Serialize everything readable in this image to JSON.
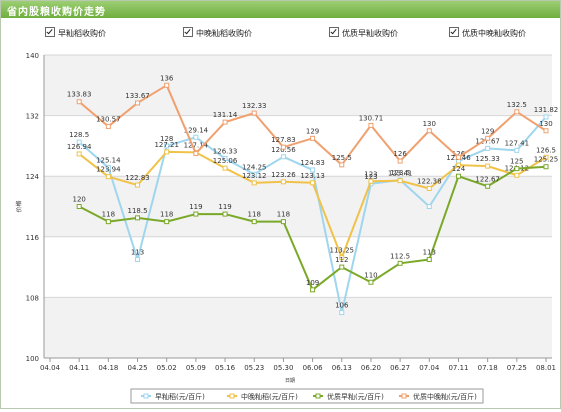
{
  "header": {
    "title": "省内股粮收购价走势"
  },
  "filters": [
    {
      "label": "早籼稻收购价",
      "checked": true
    },
    {
      "label": "中晚籼稻收购价",
      "checked": true
    },
    {
      "label": "优质早籼收购价",
      "checked": true
    },
    {
      "label": "优质中晚籼收购价",
      "checked": true
    }
  ],
  "chart_data": {
    "type": "line",
    "ylabel": "价格",
    "xlabel": "日期",
    "ylim": [
      100,
      140
    ],
    "yticks": [
      100,
      108,
      116,
      124,
      132,
      140
    ],
    "categories": [
      "04.04",
      "04.11",
      "04.18",
      "04.25",
      "05.02",
      "05.09",
      "05.16",
      "05.23",
      "05.30",
      "06.06",
      "06.13",
      "06.20",
      "06.27",
      "07.04",
      "07.11",
      "07.18",
      "07.25",
      "08.01"
    ],
    "series": [
      {
        "name": "早籼稻(元/百斤)",
        "color": "#9fd6ee",
        "values": [
          null,
          128.5,
          125.14,
          113,
          128,
          129.14,
          126.33,
          124.25,
          126.56,
          124.83,
          106,
          123,
          123.5,
          120,
          126,
          127.67,
          127.41,
          131.82
        ],
        "labels": [
          "",
          "128.5",
          "125.14",
          "113",
          "128",
          "129.14",
          "126.33",
          "124.25",
          "126.56",
          "124.83",
          "106",
          "123",
          "123.5",
          "",
          "126",
          "127.67",
          "127.41",
          "131.82"
        ]
      },
      {
        "name": "中晚籼稻(元/百斤)",
        "color": "#f0c24a",
        "values": [
          null,
          126.94,
          123.94,
          122.83,
          127.21,
          127.14,
          125.06,
          123.12,
          123.26,
          123.13,
          113.25,
          123.33,
          123.41,
          122.38,
          125.46,
          125.33,
          124.12,
          126.5
        ],
        "labels": [
          "",
          "126.94",
          "123.94",
          "122.83",
          "127.21",
          "127.14",
          "125.06",
          "123.12",
          "123.26",
          "123.13",
          "113.25",
          "123",
          "123.41",
          "122.38",
          "125.46",
          "125.33",
          "124.12",
          "126.5"
        ]
      },
      {
        "name": "优质早籼(元/百斤)",
        "color": "#7aa829",
        "values": [
          null,
          120,
          118,
          118.5,
          118,
          119,
          119,
          118,
          118,
          109,
          112,
          110,
          112.5,
          113,
          124,
          122.67,
          125,
          125.25
        ],
        "labels": [
          "",
          "120",
          "118",
          "118.5",
          "118",
          "119",
          "119",
          "118",
          "118",
          "109",
          "112",
          "110",
          "112.5",
          "113",
          "124",
          "122.67",
          "125",
          "125.25"
        ]
      },
      {
        "name": "优质中晚籼(元/百斤)",
        "color": "#f0a06e",
        "values": [
          null,
          133.83,
          130.57,
          133.67,
          136,
          127,
          131.14,
          132.33,
          127.83,
          129,
          125.5,
          130.71,
          126,
          130,
          126.5,
          129,
          132.5,
          130
        ],
        "labels": [
          "",
          "133.83",
          "130.57",
          "133.67",
          "136",
          "",
          "131.14",
          "132.33",
          "127.83",
          "129",
          "125.5",
          "130.71",
          "126",
          "130",
          "",
          "129",
          "132.5",
          "130"
        ]
      }
    ],
    "grid": true,
    "legend_position": "bottom"
  },
  "units": {
    "y_axis": "价格",
    "x_axis": "日期"
  }
}
